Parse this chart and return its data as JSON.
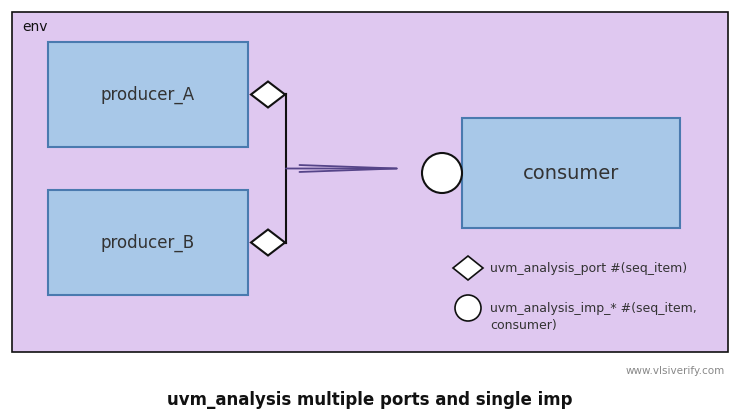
{
  "bg_outer": "#ffffff",
  "bg_env": "#dfc8f0",
  "box_fill": "#a8c8e8",
  "box_edge": "#4a7aaf",
  "env_label": "env",
  "producer_A_label": "producer_A",
  "producer_B_label": "producer_B",
  "consumer_label": "consumer",
  "title": "uvm_analysis multiple ports and single imp",
  "watermark": "www.vlsiverify.com",
  "legend_diamond": "uvm_analysis_port #(seq_item)",
  "legend_circle": "uvm_analysis_imp_* #(seq_item,\nconsumer)",
  "diamond_fill": "#ffffff",
  "diamond_edge": "#111111",
  "circle_fill": "#ffffff",
  "circle_edge": "#111111",
  "arrow_color": "#554488",
  "line_color": "#111111",
  "title_color": "#111111",
  "watermark_color": "#888888"
}
